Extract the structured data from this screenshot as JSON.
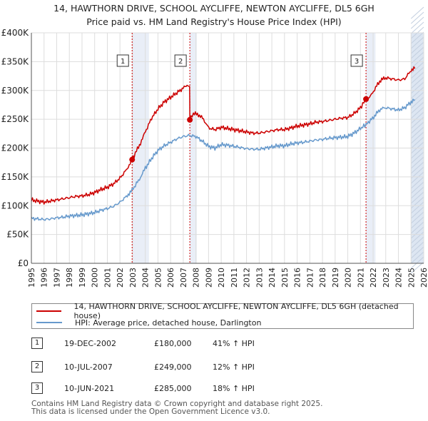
{
  "title_line1": "14, HAWTHORN DRIVE, SCHOOL AYCLIFFE, NEWTON AYCLIFFE, DL5 6GH",
  "title_line2": "Price paid vs. HM Land Registry's House Price Index (HPI)",
  "colors": {
    "price_paid": "#cc0000",
    "hpi": "#6699cc",
    "future_band": "#dde6f2",
    "sale_band": "#e9eef7",
    "grid": "#dddddd",
    "vline": "#cc0000"
  },
  "chart_data": {
    "type": "line",
    "title": "14, HAWTHORN DRIVE, SCHOOL AYCLIFFE, NEWTON AYCLIFFE, DL5 6GH — Price paid vs. HM Land Registry's House Price Index (HPI)",
    "xlabel": "",
    "ylabel": "",
    "xlim": [
      1995,
      2026
    ],
    "ylim": [
      0,
      400000
    ],
    "x_ticks": [
      "1995",
      "1996",
      "1997",
      "1998",
      "1999",
      "2000",
      "2001",
      "2002",
      "2003",
      "2004",
      "2005",
      "2006",
      "2007",
      "2008",
      "2009",
      "2010",
      "2011",
      "2012",
      "2013",
      "2014",
      "2015",
      "2016",
      "2017",
      "2018",
      "2019",
      "2020",
      "2021",
      "2022",
      "2023",
      "2024",
      "2025",
      "2026"
    ],
    "y_ticks": [
      {
        "value": 0,
        "label": "£0"
      },
      {
        "value": 50000,
        "label": "£50K"
      },
      {
        "value": 100000,
        "label": "£100K"
      },
      {
        "value": 150000,
        "label": "£150K"
      },
      {
        "value": 200000,
        "label": "£200K"
      },
      {
        "value": 250000,
        "label": "£250K"
      },
      {
        "value": 300000,
        "label": "£300K"
      },
      {
        "value": 350000,
        "label": "£350K"
      },
      {
        "value": 400000,
        "label": "£400K"
      }
    ],
    "grid": true,
    "future_shade_from": 2025.0,
    "series": [
      {
        "name": "14, HAWTHORN DRIVE, SCHOOL AYCLIFFE, NEWTON AYCLIFFE, DL5 6GH (detached house)",
        "color": "#cc0000",
        "points": [
          [
            1995.0,
            110000
          ],
          [
            1995.5,
            108000
          ],
          [
            1996.0,
            106000
          ],
          [
            1996.5,
            108000
          ],
          [
            1997.0,
            110000
          ],
          [
            1997.5,
            112000
          ],
          [
            1998.0,
            114000
          ],
          [
            1998.5,
            116000
          ],
          [
            1999.0,
            117000
          ],
          [
            1999.5,
            119000
          ],
          [
            2000.0,
            123000
          ],
          [
            2000.5,
            128000
          ],
          [
            2001.0,
            132000
          ],
          [
            2001.5,
            138000
          ],
          [
            2002.0,
            148000
          ],
          [
            2002.5,
            162000
          ],
          [
            2002.96,
            180000
          ],
          [
            2003.3,
            195000
          ],
          [
            2003.7,
            212000
          ],
          [
            2004.0,
            228000
          ],
          [
            2004.5,
            252000
          ],
          [
            2005.0,
            268000
          ],
          [
            2005.5,
            280000
          ],
          [
            2006.0,
            288000
          ],
          [
            2006.5,
            296000
          ],
          [
            2007.0,
            304000
          ],
          [
            2007.3,
            308000
          ],
          [
            2007.5,
            307000
          ],
          [
            2007.52,
            249000
          ],
          [
            2007.8,
            260000
          ],
          [
            2008.2,
            258000
          ],
          [
            2008.6,
            250000
          ],
          [
            2009.0,
            235000
          ],
          [
            2009.5,
            232000
          ],
          [
            2010.0,
            236000
          ],
          [
            2010.5,
            234000
          ],
          [
            2011.0,
            232000
          ],
          [
            2011.5,
            230000
          ],
          [
            2012.0,
            228000
          ],
          [
            2012.5,
            226000
          ],
          [
            2013.0,
            226000
          ],
          [
            2013.5,
            228000
          ],
          [
            2014.0,
            230000
          ],
          [
            2014.5,
            232000
          ],
          [
            2015.0,
            232000
          ],
          [
            2015.5,
            235000
          ],
          [
            2016.0,
            238000
          ],
          [
            2016.5,
            240000
          ],
          [
            2017.0,
            242000
          ],
          [
            2017.5,
            245000
          ],
          [
            2018.0,
            246000
          ],
          [
            2018.5,
            248000
          ],
          [
            2019.0,
            250000
          ],
          [
            2019.5,
            252000
          ],
          [
            2020.0,
            253000
          ],
          [
            2020.5,
            260000
          ],
          [
            2021.0,
            270000
          ],
          [
            2021.44,
            285000
          ],
          [
            2021.8,
            290000
          ],
          [
            2022.2,
            305000
          ],
          [
            2022.6,
            318000
          ],
          [
            2023.0,
            322000
          ],
          [
            2023.5,
            320000
          ],
          [
            2024.0,
            318000
          ],
          [
            2024.5,
            320000
          ],
          [
            2025.0,
            335000
          ],
          [
            2025.3,
            338000
          ]
        ]
      },
      {
        "name": "HPI: Average price, detached house, Darlington",
        "color": "#6699cc",
        "points": [
          [
            1995.0,
            78000
          ],
          [
            1995.5,
            77000
          ],
          [
            1996.0,
            76000
          ],
          [
            1996.5,
            77000
          ],
          [
            1997.0,
            79000
          ],
          [
            1997.5,
            80000
          ],
          [
            1998.0,
            82000
          ],
          [
            1998.5,
            83000
          ],
          [
            1999.0,
            84000
          ],
          [
            1999.5,
            86000
          ],
          [
            2000.0,
            88000
          ],
          [
            2000.5,
            92000
          ],
          [
            2001.0,
            95000
          ],
          [
            2001.5,
            99000
          ],
          [
            2002.0,
            106000
          ],
          [
            2002.5,
            116000
          ],
          [
            2002.96,
            127000
          ],
          [
            2003.3,
            138000
          ],
          [
            2003.7,
            152000
          ],
          [
            2004.0,
            165000
          ],
          [
            2004.5,
            182000
          ],
          [
            2005.0,
            196000
          ],
          [
            2005.5,
            204000
          ],
          [
            2006.0,
            210000
          ],
          [
            2006.5,
            216000
          ],
          [
            2007.0,
            220000
          ],
          [
            2007.5,
            222000
          ],
          [
            2008.0,
            220000
          ],
          [
            2008.5,
            212000
          ],
          [
            2009.0,
            203000
          ],
          [
            2009.5,
            200000
          ],
          [
            2010.0,
            206000
          ],
          [
            2010.5,
            205000
          ],
          [
            2011.0,
            203000
          ],
          [
            2011.5,
            201000
          ],
          [
            2012.0,
            199000
          ],
          [
            2012.5,
            198000
          ],
          [
            2013.0,
            198000
          ],
          [
            2013.5,
            200000
          ],
          [
            2014.0,
            202000
          ],
          [
            2014.5,
            204000
          ],
          [
            2015.0,
            204000
          ],
          [
            2015.5,
            207000
          ],
          [
            2016.0,
            209000
          ],
          [
            2016.5,
            210000
          ],
          [
            2017.0,
            212000
          ],
          [
            2017.5,
            214000
          ],
          [
            2018.0,
            215000
          ],
          [
            2018.5,
            217000
          ],
          [
            2019.0,
            218000
          ],
          [
            2019.5,
            219000
          ],
          [
            2020.0,
            220000
          ],
          [
            2020.5,
            226000
          ],
          [
            2021.0,
            234000
          ],
          [
            2021.44,
            241000
          ],
          [
            2021.8,
            248000
          ],
          [
            2022.2,
            258000
          ],
          [
            2022.6,
            268000
          ],
          [
            2023.0,
            270000
          ],
          [
            2023.5,
            268000
          ],
          [
            2024.0,
            266000
          ],
          [
            2024.5,
            270000
          ],
          [
            2025.0,
            280000
          ],
          [
            2025.3,
            284000
          ]
        ]
      }
    ],
    "sales": [
      {
        "id": "1",
        "date": "19-DEC-2002",
        "year": 2002.96,
        "price": 180000,
        "price_label": "£180,000",
        "hpi_diff": "41% ↑ HPI"
      },
      {
        "id": "2",
        "date": "10-JUL-2007",
        "year": 2007.52,
        "price": 249000,
        "price_label": "£249,000",
        "hpi_diff": "12% ↑ HPI"
      },
      {
        "id": "3",
        "date": "10-JUN-2021",
        "year": 2021.44,
        "price": 285000,
        "price_label": "£285,000",
        "hpi_diff": "18% ↑ HPI"
      }
    ]
  },
  "legend": {
    "price_paid_label": "14, HAWTHORN DRIVE, SCHOOL AYCLIFFE, NEWTON AYCLIFFE, DL5 6GH (detached house)",
    "hpi_label": "HPI: Average price, detached house, Darlington"
  },
  "footer": {
    "line1": "Contains HM Land Registry data © Crown copyright and database right 2025.",
    "line2": "This data is licensed under the Open Government Licence v3.0."
  }
}
